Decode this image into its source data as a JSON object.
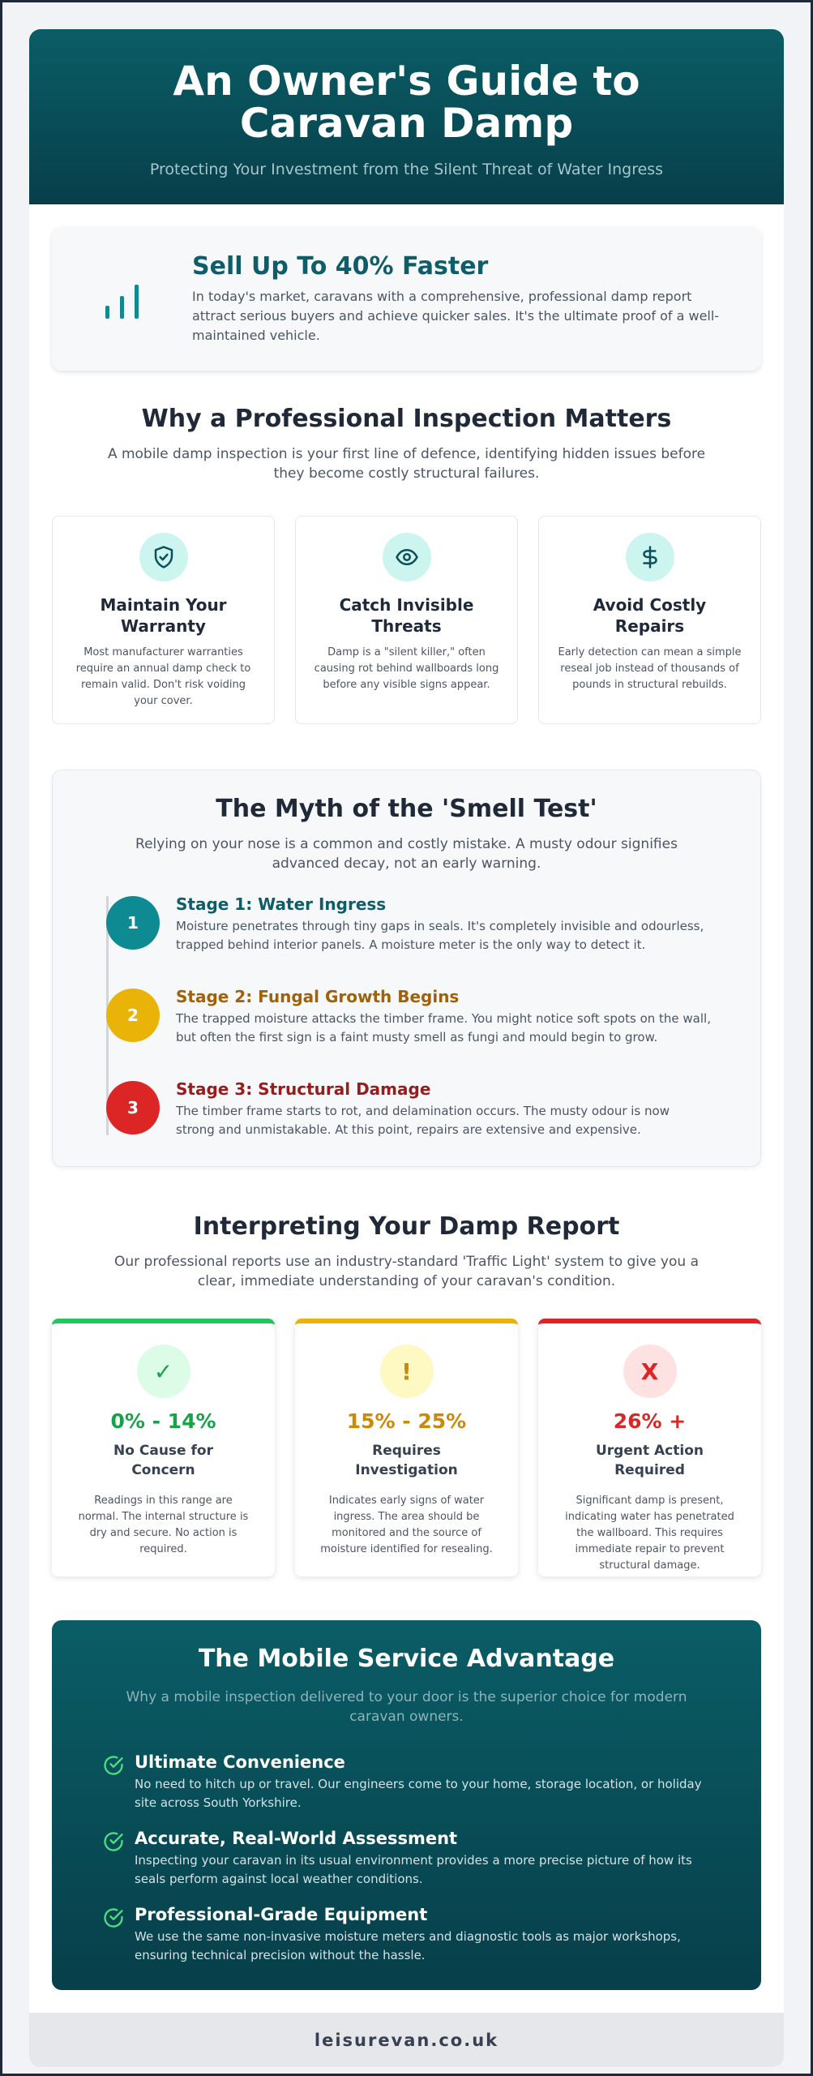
{
  "hero": {
    "title": "An Owner's Guide to Caravan Damp",
    "subtitle": "Protecting Your Investment from the Silent Threat of Water Ingress"
  },
  "stat": {
    "icon": "bar-chart-icon",
    "title": "Sell Up To 40% Faster",
    "text": "In today's market, caravans with a comprehensive, professional damp report attract serious buyers and achieve quicker sales. It's the ultimate proof of a well-maintained vehicle."
  },
  "why": {
    "title": "Why a Professional Inspection Matters",
    "intro": "A mobile damp inspection is your first line of defence, identifying hidden issues before they become costly structural failures.",
    "cards": [
      {
        "icon": "shield-check-icon",
        "title": "Maintain Your Warranty",
        "text": "Most manufacturer warranties require an annual damp check to remain valid. Don't risk voiding your cover."
      },
      {
        "icon": "eye-icon",
        "title": "Catch Invisible Threats",
        "text": "Damp is a \"silent killer,\" often causing rot behind wallboards long before any visible signs appear."
      },
      {
        "icon": "dollar-icon",
        "title": "Avoid Costly Repairs",
        "text": "Early detection can mean a simple reseal job instead of thousands of pounds in structural rebuilds."
      }
    ]
  },
  "myth": {
    "title": "The Myth of the 'Smell Test'",
    "intro": "Relying on your nose is a common and costly mistake. A musty odour signifies advanced decay, not an early warning.",
    "stages": [
      {
        "num": "1",
        "title": "Stage 1: Water Ingress",
        "text": "Moisture penetrates through tiny gaps in seals. It's completely invisible and odourless, trapped behind interior panels. A moisture meter is the only way to detect it.",
        "color": "#0e8a93",
        "title_color": "#0e5d69"
      },
      {
        "num": "2",
        "title": "Stage 2: Fungal Growth Begins",
        "text": "The trapped moisture attacks the timber frame. You might notice soft spots on the wall, but often the first sign is a faint musty smell as fungi and mould begin to grow.",
        "color": "#eab308",
        "title_color": "#a16207"
      },
      {
        "num": "3",
        "title": "Stage 3: Structural Damage",
        "text": "The timber frame starts to rot, and delamination occurs. The musty odour is now strong and unmistakable. At this point, repairs are extensive and expensive.",
        "color": "#dc2626",
        "title_color": "#991b1b"
      }
    ]
  },
  "report": {
    "title": "Interpreting Your Damp Report",
    "intro": "Our professional reports use an industry-standard 'Traffic Light' system to give you a clear, immediate understanding of your caravan's condition.",
    "cards": [
      {
        "symbol": "✓",
        "range": "0% - 14%",
        "label": "No Cause for Concern",
        "text": "Readings in this range are normal. The internal structure is dry and secure. No action is required.",
        "accent": "#22c55e",
        "tint": "#dcfce7",
        "text_color": "#16a34a"
      },
      {
        "symbol": "!",
        "range": "15% - 25%",
        "label": "Requires Investigation",
        "text": "Indicates early signs of water ingress. The area should be monitored and the source of moisture identified for resealing.",
        "accent": "#eab308",
        "tint": "#fef9c3",
        "text_color": "#ca8a04"
      },
      {
        "symbol": "X",
        "range": "26% +",
        "label": "Urgent Action Required",
        "text": "Significant damp is present, indicating water has penetrated the wallboard. This requires immediate repair to prevent structural damage.",
        "accent": "#dc2626",
        "tint": "#fee2e2",
        "text_color": "#dc2626"
      }
    ]
  },
  "advantage": {
    "title": "The Mobile Service Advantage",
    "intro": "Why a mobile inspection delivered to your door is the superior choice for modern caravan owners.",
    "items": [
      {
        "icon": "check-circle-icon",
        "title": "Ultimate Convenience",
        "text": "No need to hitch up or travel. Our engineers come to your home, storage location, or holiday site across South Yorkshire."
      },
      {
        "icon": "check-circle-icon",
        "title": "Accurate, Real-World Assessment",
        "text": "Inspecting your caravan in its usual environment provides a more precise picture of how its seals perform against local weather conditions."
      },
      {
        "icon": "check-circle-icon",
        "title": "Professional-Grade Equipment",
        "text": "We use the same non-invasive moisture meters and diagnostic tools as major workshops, ensuring technical precision without the hassle."
      }
    ]
  },
  "footer": {
    "text": "leisurevan.co.uk"
  }
}
